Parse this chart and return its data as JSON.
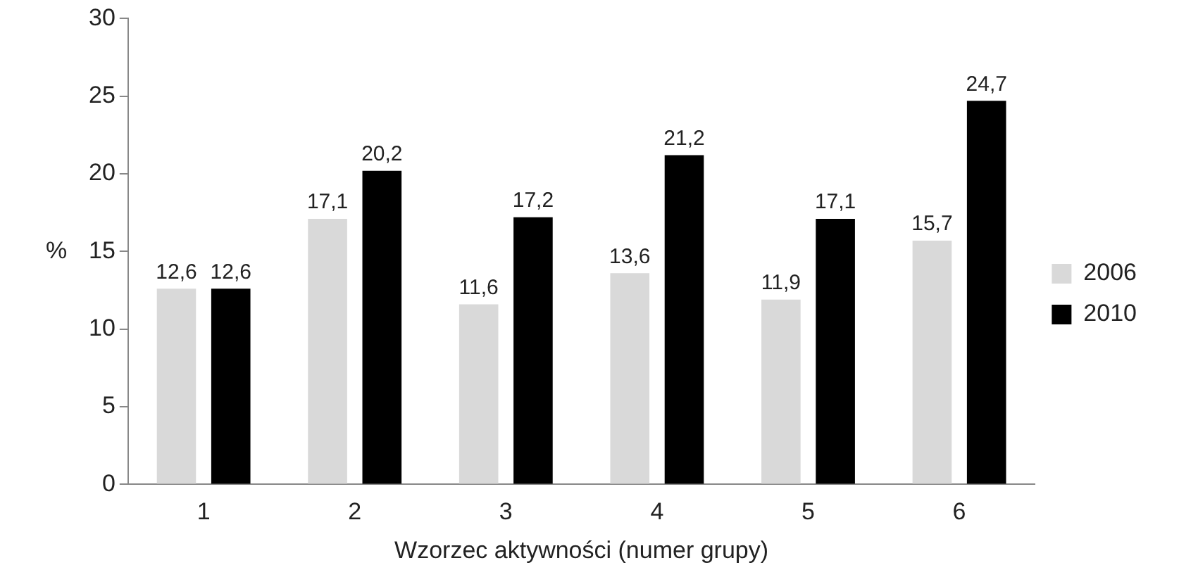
{
  "chart_data": {
    "type": "bar",
    "xlabel": "Wzorzec aktywności (numer grupy)",
    "ylabel": "%",
    "categories": [
      "1",
      "2",
      "3",
      "4",
      "5",
      "6"
    ],
    "series": [
      {
        "name": "2006",
        "color": "#d9d9d9",
        "values": [
          12.6,
          17.1,
          11.6,
          13.6,
          11.9,
          15.7
        ],
        "value_labels": [
          "12,6",
          "17,1",
          "11,6",
          "13,6",
          "11,9",
          "15,7"
        ]
      },
      {
        "name": "2010",
        "color": "#000000",
        "values": [
          12.6,
          20.2,
          17.2,
          21.2,
          17.1,
          24.7
        ],
        "value_labels": [
          "12,6",
          "20,2",
          "17,2",
          "21,2",
          "17,1",
          "24,7"
        ]
      }
    ],
    "ylim": [
      0,
      30
    ],
    "yticks": [
      0,
      5,
      10,
      15,
      20,
      25,
      30
    ],
    "grid": false,
    "legend": "right"
  }
}
